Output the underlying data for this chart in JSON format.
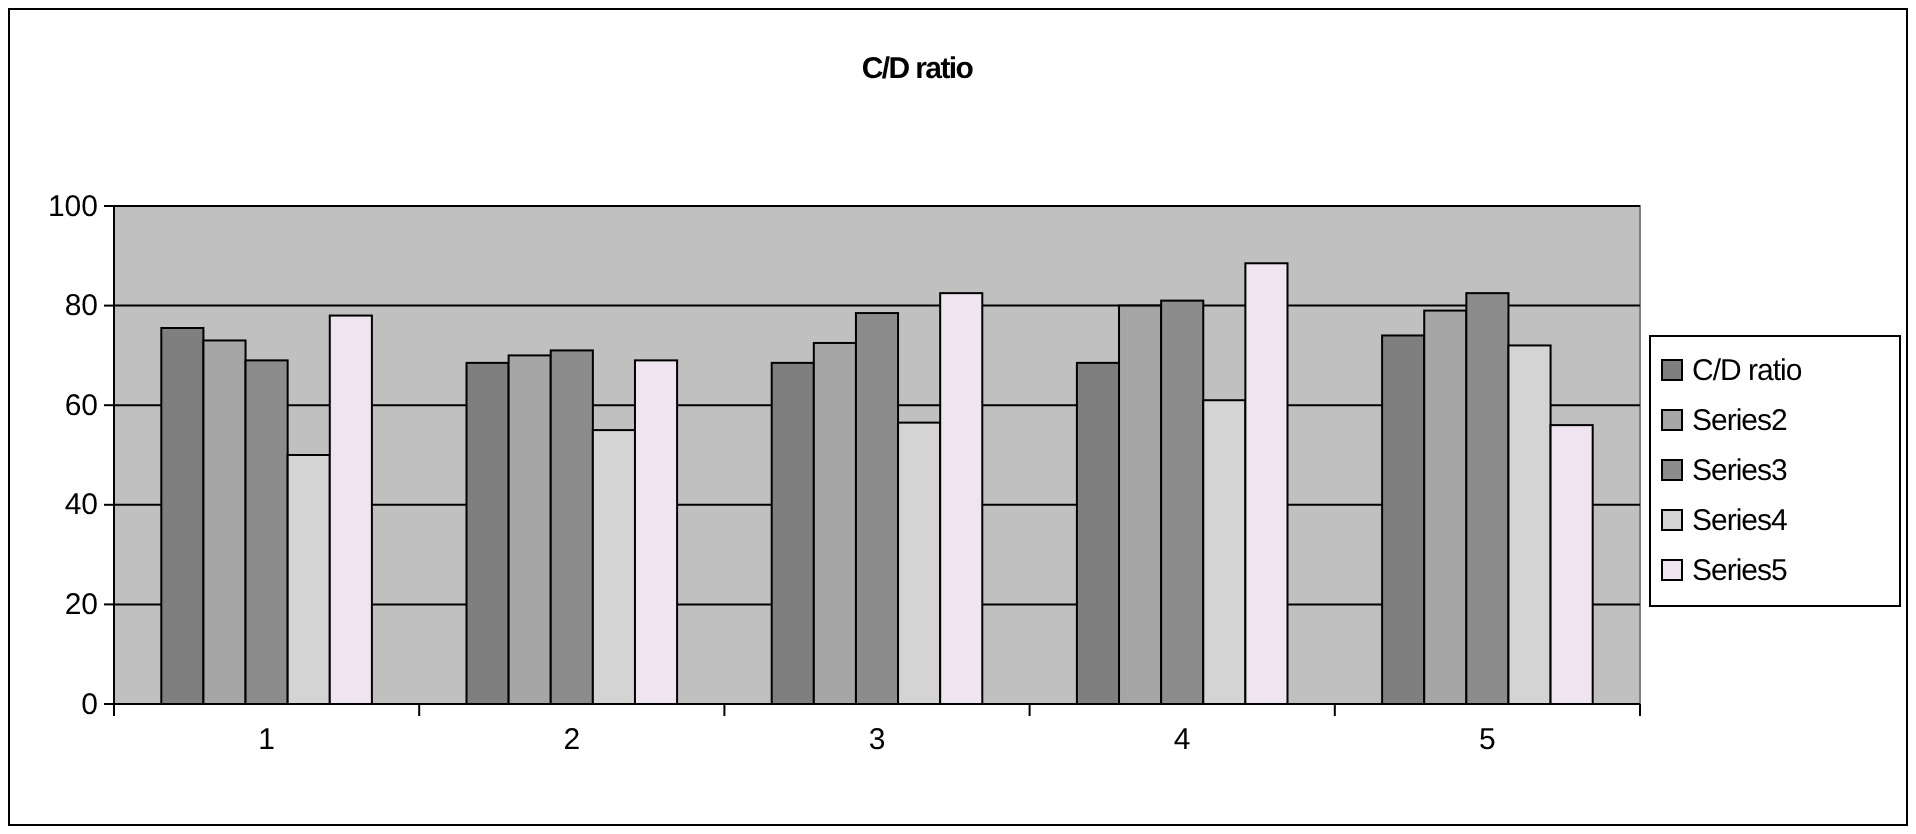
{
  "chart_data": {
    "type": "bar",
    "title": "C/D ratio",
    "categories": [
      "1",
      "2",
      "3",
      "4",
      "5"
    ],
    "series": [
      {
        "name": "C/D ratio",
        "color": "#7f7f7f",
        "values": [
          75.5,
          68.5,
          68.5,
          68.5,
          74
        ]
      },
      {
        "name": "Series2",
        "color": "#a6a6a6",
        "values": [
          73,
          70,
          72.5,
          80,
          79
        ]
      },
      {
        "name": "Series3",
        "color": "#8c8c8c",
        "values": [
          69,
          71,
          78.5,
          81,
          82.5
        ]
      },
      {
        "name": "Series4",
        "color": "#d4d4d4",
        "values": [
          50,
          55,
          56.5,
          61,
          72
        ]
      },
      {
        "name": "Series5",
        "color": "#efe4ef",
        "values": [
          78,
          69,
          82.5,
          88.5,
          56
        ]
      }
    ],
    "ylim": [
      0,
      100
    ],
    "yticks": [
      0,
      20,
      40,
      60,
      80,
      100
    ],
    "grid": "y",
    "legend": "right"
  }
}
